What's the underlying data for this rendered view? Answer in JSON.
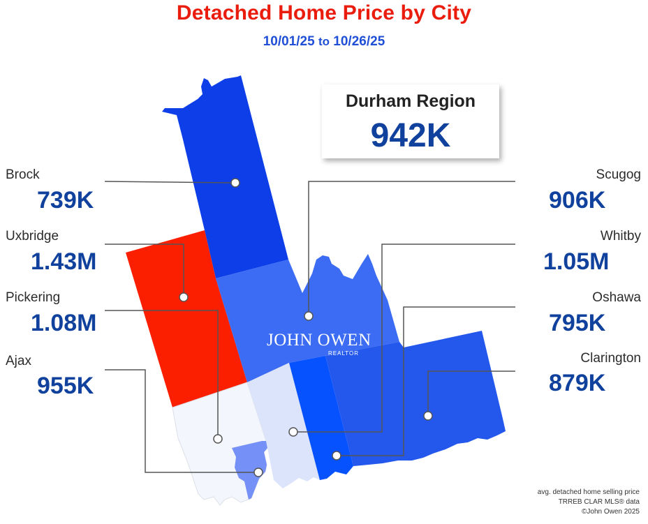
{
  "title": "Detached Home Price by City",
  "date_range": {
    "start": "10/01/25",
    "connector": "to",
    "end": "10/26/25"
  },
  "region": {
    "name": "Durham Region",
    "price": "942K"
  },
  "cities": [
    {
      "name": "Brock",
      "price": "739K",
      "fill": "#0d3ee8"
    },
    {
      "name": "Uxbridge",
      "price": "1.43M",
      "fill": "#fb1f00"
    },
    {
      "name": "Pickering",
      "price": "1.08M",
      "fill": "#f4f6fd"
    },
    {
      "name": "Ajax",
      "price": "955K",
      "fill": "#7590f6"
    },
    {
      "name": "Scugog",
      "price": "906K",
      "fill": "#3b6cf3"
    },
    {
      "name": "Whitby",
      "price": "1.05M",
      "fill": "#dce4fb"
    },
    {
      "name": "Oshawa",
      "price": "795K",
      "fill": "#0652ff"
    },
    {
      "name": "Clarington",
      "price": "879K",
      "fill": "#2458ec"
    }
  ],
  "logo": {
    "name": "JOHN OWEN",
    "sub": "REALTOR"
  },
  "footnotes": [
    "avg. detached home selling price",
    "TRREB CLAR MLS® data",
    "©John Owen 2025"
  ],
  "colors": {
    "title": "#ea1c0d",
    "dates": "#1f4fd6",
    "price": "#10419c",
    "leader": "#555555"
  }
}
